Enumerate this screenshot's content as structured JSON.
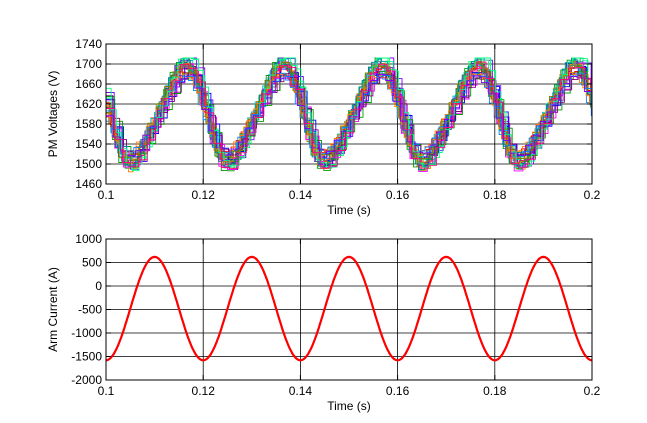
{
  "chart_data": [
    {
      "type": "line",
      "xlabel": "Time (s)",
      "ylabel": "PM Voltages (V)",
      "xlim": [
        0.1,
        0.2
      ],
      "ylim": [
        1460,
        1740
      ],
      "xticks": [
        0.1,
        0.12,
        0.14,
        0.16,
        0.18,
        0.2
      ],
      "xtick_labels": [
        "0.1",
        "0.12",
        "0.14",
        "0.16",
        "0.18",
        "0.2"
      ],
      "yticks": [
        1460,
        1500,
        1540,
        1580,
        1620,
        1660,
        1700,
        1740
      ],
      "ytick_labels": [
        "1460",
        "1500",
        "1540",
        "1580",
        "1620",
        "1660",
        "1700",
        "1740"
      ],
      "grid": true,
      "series_description": "many overlapping multicolor submodule voltage traces, period 0.02 s, range about 1475-1712 V",
      "envelope_min": 1475,
      "envelope_max": 1712,
      "trace_count": 28,
      "colors": [
        "#0000ff",
        "#ff0000",
        "#00a000",
        "#ff00ff",
        "#00c0c0",
        "#c08000",
        "#800080",
        "#008080",
        "#808000",
        "#ff8000",
        "#0080ff",
        "#8000ff",
        "#00ff80",
        "#ff0080"
      ]
    },
    {
      "type": "line",
      "xlabel": "Time (s)",
      "ylabel": "Arm Current (A)",
      "xlim": [
        0.1,
        0.2
      ],
      "ylim": [
        -2000,
        1000
      ],
      "xticks": [
        0.1,
        0.12,
        0.14,
        0.16,
        0.18,
        0.2
      ],
      "xtick_labels": [
        "0.1",
        "0.12",
        "0.14",
        "0.16",
        "0.18",
        "0.2"
      ],
      "yticks": [
        -2000,
        -1500,
        -1000,
        -500,
        0,
        500,
        1000
      ],
      "ytick_labels": [
        "-2000",
        "-1500",
        "-1000",
        "-500",
        "0",
        "500",
        "1000"
      ],
      "grid": true,
      "series": [
        {
          "color": "#ff0000",
          "waveform": "sinusoid",
          "period": 0.02,
          "peak_times": [
            0.11,
            0.13,
            0.15,
            0.17,
            0.19
          ],
          "max": 620,
          "min": -1580
        }
      ]
    }
  ]
}
